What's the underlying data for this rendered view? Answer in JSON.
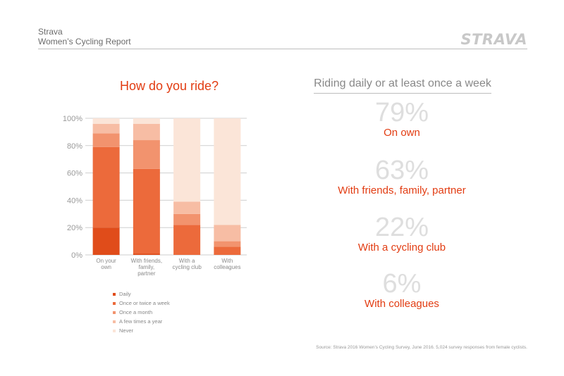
{
  "header": {
    "brand": "Strava",
    "report_title": "Women’s Cycling Report",
    "logo_text": "STRAVA"
  },
  "chart_title": "How do you ride?",
  "chart_data": {
    "type": "bar",
    "stacked": true,
    "categories": [
      [
        "On your",
        "own"
      ],
      [
        "With friends,",
        "family,",
        "partner"
      ],
      [
        "With a",
        "cycling club"
      ],
      [
        "With",
        "colleagues"
      ]
    ],
    "series": [
      {
        "name": "Daily",
        "color": "#e04c1a",
        "values": [
          20,
          1,
          0,
          0
        ]
      },
      {
        "name": "Once or twice a week",
        "color": "#ec6a3b",
        "values": [
          59,
          62,
          22,
          6
        ]
      },
      {
        "name": "Once a month",
        "color": "#f2936e",
        "values": [
          10,
          21,
          8,
          4
        ]
      },
      {
        "name": "A few times a year",
        "color": "#f7bda4",
        "values": [
          7,
          12,
          9,
          12
        ]
      },
      {
        "name": "Never",
        "color": "#fbe5d8",
        "values": [
          4,
          4,
          61,
          78
        ]
      }
    ],
    "ylim": [
      0,
      100
    ],
    "yticks": [
      "0%",
      "20%",
      "40%",
      "60%",
      "80%",
      "100%"
    ],
    "grid": true,
    "legend_position": "bottom"
  },
  "stats": {
    "heading": "Riding daily or at least once a week",
    "label_color": "#e23c12",
    "items": [
      {
        "value": "79%",
        "label": "On own"
      },
      {
        "value": "63%",
        "label": "With friends, family, partner"
      },
      {
        "value": "22%",
        "label": "With a cycling club"
      },
      {
        "value": "6%",
        "label": "With colleagues"
      }
    ]
  },
  "source": "Source: Strava 2016 Women’s Cycling Survey, June 2016. 5,024 survey responses from female cyclists.",
  "colors": {
    "title_accent": "#e23c12"
  }
}
